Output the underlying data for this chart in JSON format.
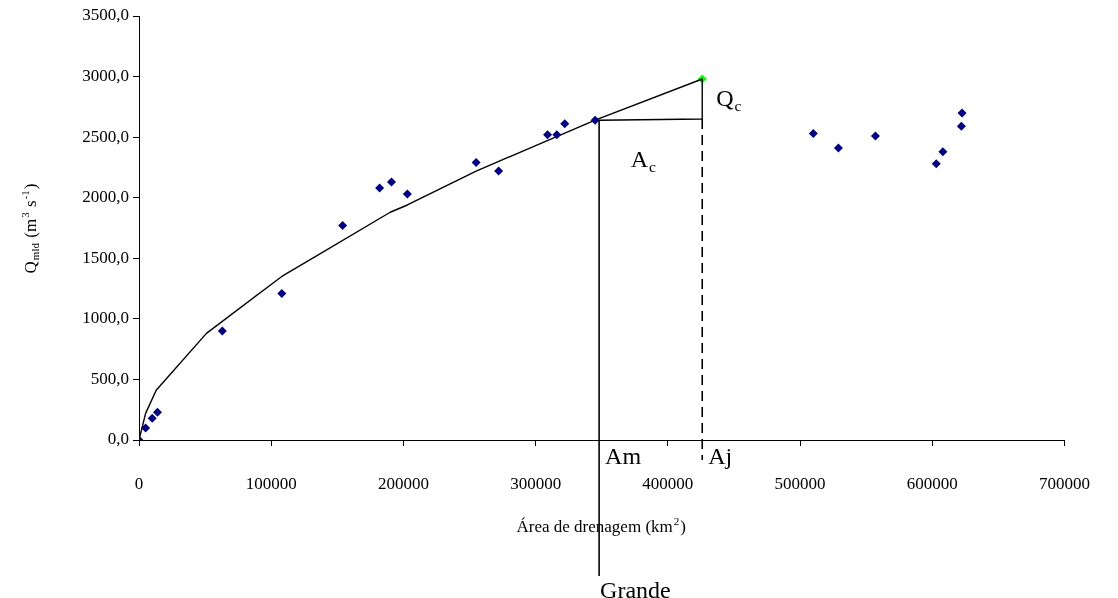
{
  "chart_data": {
    "type": "scatter",
    "xlabel": "Área de drenagem (km$^{2}$)",
    "ylabel": "Q$_{mld}$ (m$^{3}$ s$^{-1}$)",
    "xlim": [
      0,
      700000
    ],
    "xticks": [
      0,
      100000,
      200000,
      300000,
      400000,
      500000,
      600000,
      700000
    ],
    "ylim": [
      0,
      3500
    ],
    "yticks": [
      {
        "value": 0,
        "label": "0,0"
      },
      {
        "value": 500,
        "label": "500,0"
      },
      {
        "value": 1000,
        "label": "1000,0"
      },
      {
        "value": 1500,
        "label": "1500,0"
      },
      {
        "value": 2000,
        "label": "2000,0"
      },
      {
        "value": 2500,
        "label": "2500,0"
      },
      {
        "value": 3000,
        "label": "3000,0"
      },
      {
        "value": 3500,
        "label": "3500,0"
      }
    ],
    "grid": false,
    "legend": false,
    "marker": "diamond",
    "series": [
      {
        "color": "#000080",
        "x": [
          0,
          5000,
          10000,
          14000,
          63000,
          108000,
          154000,
          182000,
          191000,
          203000,
          255000,
          272000,
          309000,
          316000,
          322000,
          345000,
          510000,
          529000,
          557000,
          603000,
          608000,
          622000,
          622500
        ],
        "values": [
          0,
          100,
          180,
          230,
          900,
          1210,
          1770,
          2080,
          2130,
          2030,
          2290,
          2220,
          2520,
          2520,
          2610,
          2640,
          2530,
          2410,
          2510,
          2280,
          2380,
          2590,
          2700
        ]
      },
      {
        "type": "line",
        "marker": "none",
        "color": "#000000",
        "x": [
          0,
          5000,
          13000,
          51000,
          108000,
          190000,
          203000,
          255000,
          345000
        ],
        "values": [
          0,
          220,
          410,
          880,
          1350,
          1880,
          1940,
          2220,
          2640
        ]
      },
      {
        "type": "line",
        "marker": "none",
        "color": "#000000",
        "x": [
          345000,
          426000,
          426000,
          348000
        ],
        "values": [
          2640,
          2980,
          2650,
          2640
        ]
      },
      {
        "color": "#00ff00",
        "x": [
          426000
        ],
        "values": [
          2980
        ]
      }
    ],
    "ref_lines": [
      {
        "axis": "x",
        "value": 348000,
        "label": "Am"
      },
      {
        "axis": "x",
        "value": 426000,
        "label": "Aj",
        "line_style": "dashed"
      }
    ],
    "annotations": [
      "A$_{c}$",
      "Q$_{c}$",
      "Grande"
    ]
  }
}
